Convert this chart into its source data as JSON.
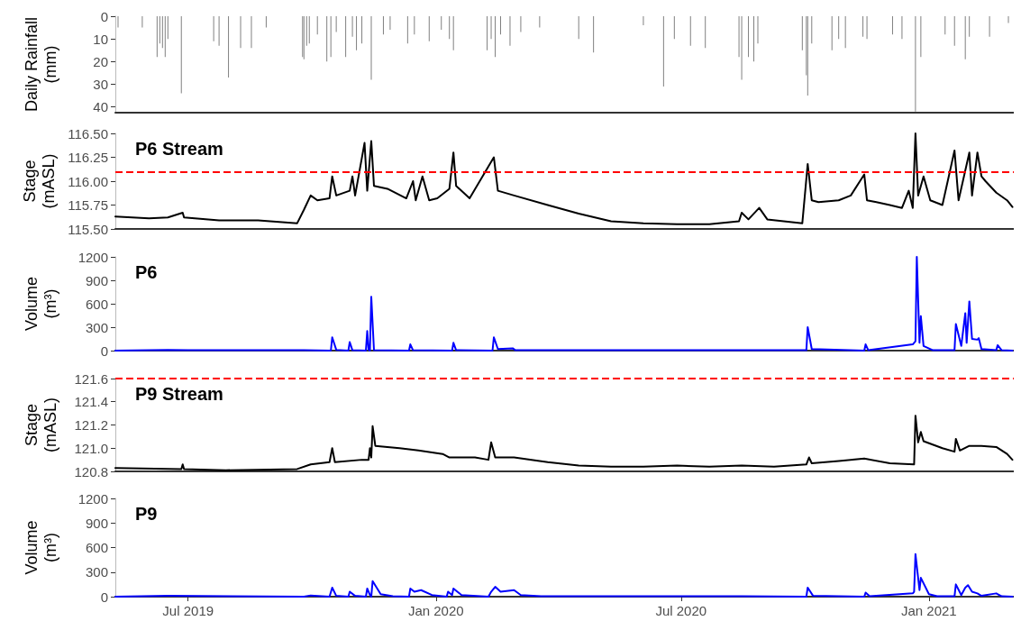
{
  "chart_data": [
    {
      "type": "bar",
      "ylabel": "Daily Rainfall\n(mm)",
      "xlim": [
        "2019-05-08",
        "2021-03-05"
      ],
      "ylim": [
        42.5,
        0
      ],
      "yticks": [
        0,
        10,
        20,
        30,
        40
      ],
      "tick_labels": "y",
      "color": "#808080",
      "x": [
        "2019-05-10",
        "2019-05-28",
        "2019-06-08",
        "2019-06-10",
        "2019-06-12",
        "2019-06-14",
        "2019-06-16",
        "2019-06-26",
        "2019-07-20",
        "2019-07-24",
        "2019-07-31",
        "2019-08-09",
        "2019-08-17",
        "2019-08-28",
        "2019-09-24",
        "2019-09-25",
        "2019-09-27",
        "2019-09-29",
        "2019-10-05",
        "2019-10-12",
        "2019-10-15",
        "2019-10-19",
        "2019-10-26",
        "2019-10-31",
        "2019-11-03",
        "2019-11-07",
        "2019-11-14",
        "2019-11-23",
        "2019-11-28",
        "2019-12-11",
        "2019-12-16",
        "2019-12-27",
        "2020-01-05",
        "2020-01-11",
        "2020-01-14",
        "2020-02-08",
        "2020-02-11",
        "2020-02-14",
        "2020-02-18",
        "2020-02-25",
        "2020-03-04",
        "2020-03-18",
        "2020-04-16",
        "2020-04-27",
        "2020-06-03",
        "2020-06-18",
        "2020-06-26",
        "2020-07-08",
        "2020-07-19",
        "2020-08-13",
        "2020-08-15",
        "2020-08-20",
        "2020-08-24",
        "2020-08-27",
        "2020-09-29",
        "2020-10-02",
        "2020-10-03",
        "2020-10-06",
        "2020-10-21",
        "2020-10-26",
        "2020-10-31",
        "2020-11-13",
        "2020-11-16",
        "2020-12-05",
        "2020-12-12",
        "2020-12-22",
        "2020-12-26",
        "2021-01-13",
        "2021-01-20",
        "2021-01-28",
        "2021-01-31",
        "2021-02-15",
        "2021-03-01"
      ],
      "values": [
        5,
        5,
        18,
        12,
        14,
        18,
        10,
        34,
        11,
        13,
        27,
        14,
        14,
        5,
        18,
        19,
        13,
        12,
        8,
        20,
        18,
        7,
        18,
        9,
        15,
        12,
        28,
        8,
        6,
        12,
        8,
        11,
        6,
        10,
        15,
        15,
        10,
        18,
        8,
        13,
        7,
        5,
        10,
        16,
        4,
        31,
        10,
        13,
        14,
        18,
        28,
        18,
        20,
        12,
        15,
        26,
        35,
        12,
        15,
        10,
        14,
        9,
        10,
        8,
        10,
        42,
        18,
        8,
        13,
        19,
        9,
        9,
        3
      ]
    },
    {
      "type": "line",
      "title": "P6 Stream",
      "ylabel": "Stage\n(mASL)",
      "xlim": [
        "2019-05-08",
        "2021-03-05"
      ],
      "ylim": [
        115.5,
        116.5
      ],
      "yticks": [
        {
          "value": 115.5,
          "label": "115.50"
        },
        {
          "value": 115.75,
          "label": "115.75"
        },
        {
          "value": 116,
          "label": "116.00"
        },
        {
          "value": 116.25,
          "label": "116.25"
        },
        {
          "value": 116.5,
          "label": "116.50"
        }
      ],
      "tick_labels": "y",
      "color": "#000000",
      "ref_lines": [
        {
          "axis": "y",
          "value": 116.1,
          "color": "#ff0000",
          "line_style": "dashed"
        }
      ],
      "x": [
        "2019-05-08",
        "2019-06-02",
        "2019-06-16",
        "2019-06-27",
        "2019-06-28",
        "2019-07-24",
        "2019-08-22",
        "2019-09-20",
        "2019-09-25",
        "2019-09-30",
        "2019-10-05",
        "2019-10-14",
        "2019-10-16",
        "2019-10-19",
        "2019-10-29",
        "2019-10-31",
        "2019-11-02",
        "2019-11-09",
        "2019-11-11",
        "2019-11-14",
        "2019-11-16",
        "2019-11-26",
        "2019-12-10",
        "2019-12-15",
        "2019-12-17",
        "2019-12-22",
        "2019-12-27",
        "2020-01-02",
        "2020-01-11",
        "2020-01-14",
        "2020-01-16",
        "2020-01-26",
        "2020-02-13",
        "2020-02-16",
        "2020-02-28",
        "2020-03-24",
        "2020-04-16",
        "2020-05-10",
        "2020-06-03",
        "2020-06-28",
        "2020-07-22",
        "2020-08-13",
        "2020-08-15",
        "2020-08-20",
        "2020-08-28",
        "2020-09-03",
        "2020-09-29",
        "2020-10-03",
        "2020-10-06",
        "2020-10-11",
        "2020-10-26",
        "2020-11-04",
        "2020-11-14",
        "2020-11-16",
        "2020-11-23",
        "2020-12-03",
        "2020-12-12",
        "2020-12-17",
        "2020-12-20",
        "2020-12-22",
        "2020-12-24",
        "2020-12-28",
        "2021-01-02",
        "2021-01-11",
        "2021-01-20",
        "2021-01-23",
        "2021-01-31",
        "2021-02-02",
        "2021-02-06",
        "2021-02-09",
        "2021-02-12",
        "2021-02-20",
        "2021-02-28",
        "2021-03-04"
      ],
      "values": [
        115.63,
        115.61,
        115.62,
        115.67,
        115.62,
        115.59,
        115.59,
        115.56,
        115.7,
        115.85,
        115.8,
        115.82,
        116.05,
        115.85,
        115.9,
        116.05,
        115.85,
        116.4,
        115.9,
        116.42,
        115.95,
        115.92,
        115.82,
        116,
        115.8,
        116.05,
        115.8,
        115.82,
        115.92,
        116.3,
        115.95,
        115.82,
        116.25,
        115.9,
        115.85,
        115.75,
        115.66,
        115.58,
        115.56,
        115.55,
        115.55,
        115.58,
        115.67,
        115.6,
        115.72,
        115.6,
        115.56,
        116.18,
        115.8,
        115.78,
        115.8,
        115.85,
        116.07,
        115.8,
        115.78,
        115.75,
        115.72,
        115.9,
        115.72,
        116.5,
        115.85,
        116.05,
        115.8,
        115.75,
        116.32,
        115.8,
        116.3,
        115.85,
        116.3,
        116.05,
        116,
        115.88,
        115.8,
        115.73
      ]
    },
    {
      "type": "line",
      "title": "P6",
      "ylabel": "Volume\n(m³)",
      "xlim": [
        "2019-05-08",
        "2021-03-05"
      ],
      "ylim": [
        0,
        1200
      ],
      "yticks": [
        0,
        300,
        600,
        900,
        1200
      ],
      "tick_labels": "y",
      "color": "#0000ff",
      "x": [
        "2019-05-08",
        "2019-06-16",
        "2019-07-01",
        "2019-09-25",
        "2019-10-15",
        "2019-10-16",
        "2019-10-19",
        "2019-10-28",
        "2019-10-29",
        "2019-10-31",
        "2019-11-10",
        "2019-11-11",
        "2019-11-12",
        "2019-11-13",
        "2019-11-14",
        "2019-11-16",
        "2019-12-12",
        "2019-12-13",
        "2019-12-15",
        "2020-01-13",
        "2020-01-14",
        "2020-01-16",
        "2020-02-12",
        "2020-02-13",
        "2020-02-16",
        "2020-02-27",
        "2020-02-29",
        "2020-03-29",
        "2020-10-02",
        "2020-10-03",
        "2020-10-06",
        "2020-11-14",
        "2020-11-15",
        "2020-11-17",
        "2020-12-20",
        "2020-12-22",
        "2020-12-23",
        "2020-12-25",
        "2020-12-26",
        "2020-12-28",
        "2021-01-04",
        "2021-01-20",
        "2021-01-21",
        "2021-01-25",
        "2021-01-28",
        "2021-01-29",
        "2021-01-31",
        "2021-02-02",
        "2021-02-06",
        "2021-02-07",
        "2021-02-09",
        "2021-02-20",
        "2021-02-21",
        "2021-02-24",
        "2021-03-04"
      ],
      "values": [
        0,
        10,
        5,
        5,
        0,
        170,
        10,
        0,
        110,
        5,
        0,
        250,
        10,
        0,
        690,
        5,
        0,
        80,
        5,
        0,
        100,
        5,
        0,
        170,
        20,
        30,
        5,
        5,
        5,
        300,
        20,
        0,
        80,
        5,
        80,
        120,
        1200,
        100,
        440,
        60,
        5,
        5,
        340,
        60,
        480,
        100,
        630,
        150,
        140,
        160,
        20,
        5,
        70,
        5,
        0
      ]
    },
    {
      "type": "line",
      "title": "P9 Stream",
      "ylabel": "Stage\n(mASL)",
      "xlim": [
        "2019-05-08",
        "2021-03-05"
      ],
      "ylim": [
        120.8,
        121.6
      ],
      "yticks": [
        120.8,
        {
          "value": 121,
          "label": "121.0"
        },
        121.2,
        121.4,
        121.6
      ],
      "tick_labels": "y",
      "color": "#000000",
      "ref_lines": [
        {
          "axis": "y",
          "value": 121.6,
          "color": "#ff0000",
          "line_style": "dashed"
        }
      ],
      "x": [
        "2019-05-08",
        "2019-06-26",
        "2019-06-27",
        "2019-06-28",
        "2019-07-29",
        "2019-09-20",
        "2019-09-30",
        "2019-10-14",
        "2019-10-16",
        "2019-10-18",
        "2019-11-07",
        "2019-11-12",
        "2019-11-13",
        "2019-11-14",
        "2019-11-15",
        "2019-11-17",
        "2019-12-05",
        "2019-12-19",
        "2020-01-06",
        "2020-01-11",
        "2020-01-30",
        "2020-02-09",
        "2020-02-11",
        "2020-02-14",
        "2020-02-28",
        "2020-03-24",
        "2020-04-16",
        "2020-05-10",
        "2020-06-03",
        "2020-06-28",
        "2020-07-22",
        "2020-08-15",
        "2020-09-08",
        "2020-10-02",
        "2020-10-04",
        "2020-10-06",
        "2020-10-26",
        "2020-11-14",
        "2020-12-03",
        "2020-12-21",
        "2020-12-22",
        "2020-12-24",
        "2020-12-26",
        "2020-12-28",
        "2021-01-11",
        "2021-01-20",
        "2021-01-21",
        "2021-01-24",
        "2021-01-31",
        "2021-02-09",
        "2021-02-20",
        "2021-02-28",
        "2021-03-04"
      ],
      "values": [
        120.83,
        120.82,
        120.86,
        120.82,
        120.81,
        120.82,
        120.86,
        120.88,
        121,
        120.88,
        120.9,
        120.9,
        121,
        120.92,
        121.19,
        121.02,
        121,
        120.98,
        120.95,
        120.92,
        120.92,
        120.9,
        121.05,
        120.92,
        120.92,
        120.88,
        120.85,
        120.84,
        120.84,
        120.85,
        120.84,
        120.85,
        120.84,
        120.86,
        120.92,
        120.87,
        120.89,
        120.91,
        120.87,
        120.86,
        121.28,
        121.05,
        121.14,
        121.06,
        121,
        120.97,
        121.08,
        120.98,
        121.02,
        121.02,
        121.01,
        120.95,
        120.9
      ]
    },
    {
      "type": "line",
      "title": "P9",
      "ylabel": "Volume\n(m³)",
      "xlim": [
        "2019-05-08",
        "2021-03-05"
      ],
      "ylim": [
        0,
        1200
      ],
      "yticks": [
        0,
        300,
        600,
        900,
        1200
      ],
      "xticks": [
        {
          "value": "2019-07-01",
          "label": "Jul 2019"
        },
        {
          "value": "2020-01-01",
          "label": "Jan 2020"
        },
        {
          "value": "2020-07-01",
          "label": "Jul 2020"
        },
        {
          "value": "2021-01-01",
          "label": "Jan 2021"
        }
      ],
      "color": "#0000ff",
      "x": [
        "2019-05-08",
        "2019-06-16",
        "2019-09-25",
        "2019-09-30",
        "2019-10-14",
        "2019-10-16",
        "2019-10-19",
        "2019-10-28",
        "2019-10-29",
        "2019-11-02",
        "2019-11-10",
        "2019-11-11",
        "2019-11-13",
        "2019-11-14",
        "2019-11-15",
        "2019-11-21",
        "2019-11-30",
        "2019-12-12",
        "2019-12-13",
        "2019-12-16",
        "2019-12-21",
        "2019-12-29",
        "2020-01-09",
        "2020-01-10",
        "2020-01-13",
        "2020-01-14",
        "2020-01-20",
        "2020-02-09",
        "2020-02-11",
        "2020-02-14",
        "2020-02-18",
        "2020-02-28",
        "2020-03-04",
        "2020-03-19",
        "2020-08-15",
        "2020-10-02",
        "2020-10-03",
        "2020-10-07",
        "2020-11-14",
        "2020-11-15",
        "2020-11-18",
        "2020-12-20",
        "2020-12-21",
        "2020-12-22",
        "2020-12-25",
        "2020-12-26",
        "2021-01-01",
        "2021-01-07",
        "2021-01-20",
        "2021-01-21",
        "2021-01-25",
        "2021-01-28",
        "2021-01-30",
        "2021-02-02",
        "2021-02-06",
        "2021-02-09",
        "2021-02-20",
        "2021-02-24",
        "2021-03-04"
      ],
      "values": [
        0,
        10,
        0,
        15,
        0,
        110,
        10,
        0,
        60,
        10,
        0,
        100,
        20,
        0,
        190,
        30,
        5,
        0,
        100,
        60,
        80,
        20,
        0,
        60,
        20,
        100,
        20,
        0,
        60,
        120,
        60,
        80,
        20,
        5,
        5,
        0,
        110,
        10,
        0,
        50,
        5,
        40,
        60,
        520,
        80,
        230,
        30,
        5,
        5,
        150,
        20,
        110,
        140,
        60,
        40,
        10,
        40,
        5,
        0
      ]
    }
  ]
}
